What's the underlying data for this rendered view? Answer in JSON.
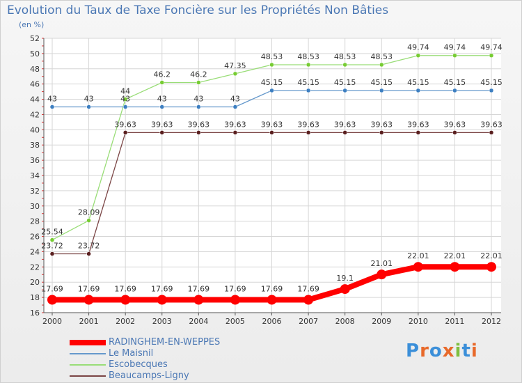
{
  "header": {
    "title": "Evolution du Taux de Taxe Foncière sur les Propriétés Non Bâties",
    "unit": "(en %)"
  },
  "logo": {
    "text": "Proxiti"
  },
  "chart_data": {
    "type": "line",
    "title": "Evolution du Taux de Taxe Foncière sur les Propriétés Non Bâties",
    "ylabel": "(en %)",
    "xlabel": "",
    "categories": [
      "2000",
      "2001",
      "2002",
      "2003",
      "2004",
      "2005",
      "2006",
      "2007",
      "2008",
      "2009",
      "2010",
      "2011",
      "2012"
    ],
    "ylim": [
      16,
      52
    ],
    "yticks": [
      16,
      18,
      20,
      22,
      24,
      26,
      28,
      30,
      32,
      34,
      36,
      38,
      40,
      42,
      44,
      46,
      48,
      50,
      52
    ],
    "grid": true,
    "legend_position": "bottom-left",
    "series": [
      {
        "name": "RADINGHEM-EN-WEPPES",
        "color": "#ff0000",
        "marker_color": "#ff0000",
        "width": "thick",
        "values": [
          17.69,
          17.69,
          17.69,
          17.69,
          17.69,
          17.69,
          17.69,
          17.69,
          19.1,
          21.01,
          22.01,
          22.01,
          22.01
        ],
        "labels": [
          "17.69",
          "17.69",
          "17.69",
          "17.69",
          "17.69",
          "17.69",
          "17.69",
          "17.69",
          "19.1",
          "21.01",
          "22.01",
          "22.01",
          "22.01"
        ]
      },
      {
        "name": "Le Maisnil",
        "color": "#6699cc",
        "marker_color": "#3d7fc1",
        "width": "thin",
        "values": [
          43,
          43,
          43,
          43,
          43,
          43,
          45.15,
          45.15,
          45.15,
          45.15,
          45.15,
          45.15,
          45.15
        ],
        "labels": [
          "43",
          "43",
          "43",
          "43",
          "43",
          "43",
          "45.15",
          "45.15",
          "45.15",
          "45.15",
          "45.15",
          "45.15",
          "45.15"
        ]
      },
      {
        "name": "Escobecques",
        "color": "#99dd77",
        "marker_color": "#77cc33",
        "width": "thin",
        "values": [
          25.54,
          28.09,
          44,
          46.2,
          46.2,
          47.35,
          48.53,
          48.53,
          48.53,
          48.53,
          49.74,
          49.74,
          49.74
        ],
        "labels": [
          "25.54",
          "28.09",
          "44",
          "46.2",
          "46.2",
          "47.35",
          "48.53",
          "48.53",
          "48.53",
          "48.53",
          "49.74",
          "49.74",
          "49.74"
        ]
      },
      {
        "name": "Beaucamps-Ligny",
        "color": "#7a4444",
        "marker_color": "#5a1f1f",
        "width": "thin",
        "values": [
          23.72,
          23.72,
          39.63,
          39.63,
          39.63,
          39.63,
          39.63,
          39.63,
          39.63,
          39.63,
          39.63,
          39.63,
          39.63
        ],
        "labels": [
          "23.72",
          "23.72",
          "39.63",
          "39.63",
          "39.63",
          "39.63",
          "39.63",
          "39.63",
          "39.63",
          "39.63",
          "39.63",
          "39.63",
          "39.63"
        ]
      }
    ]
  }
}
